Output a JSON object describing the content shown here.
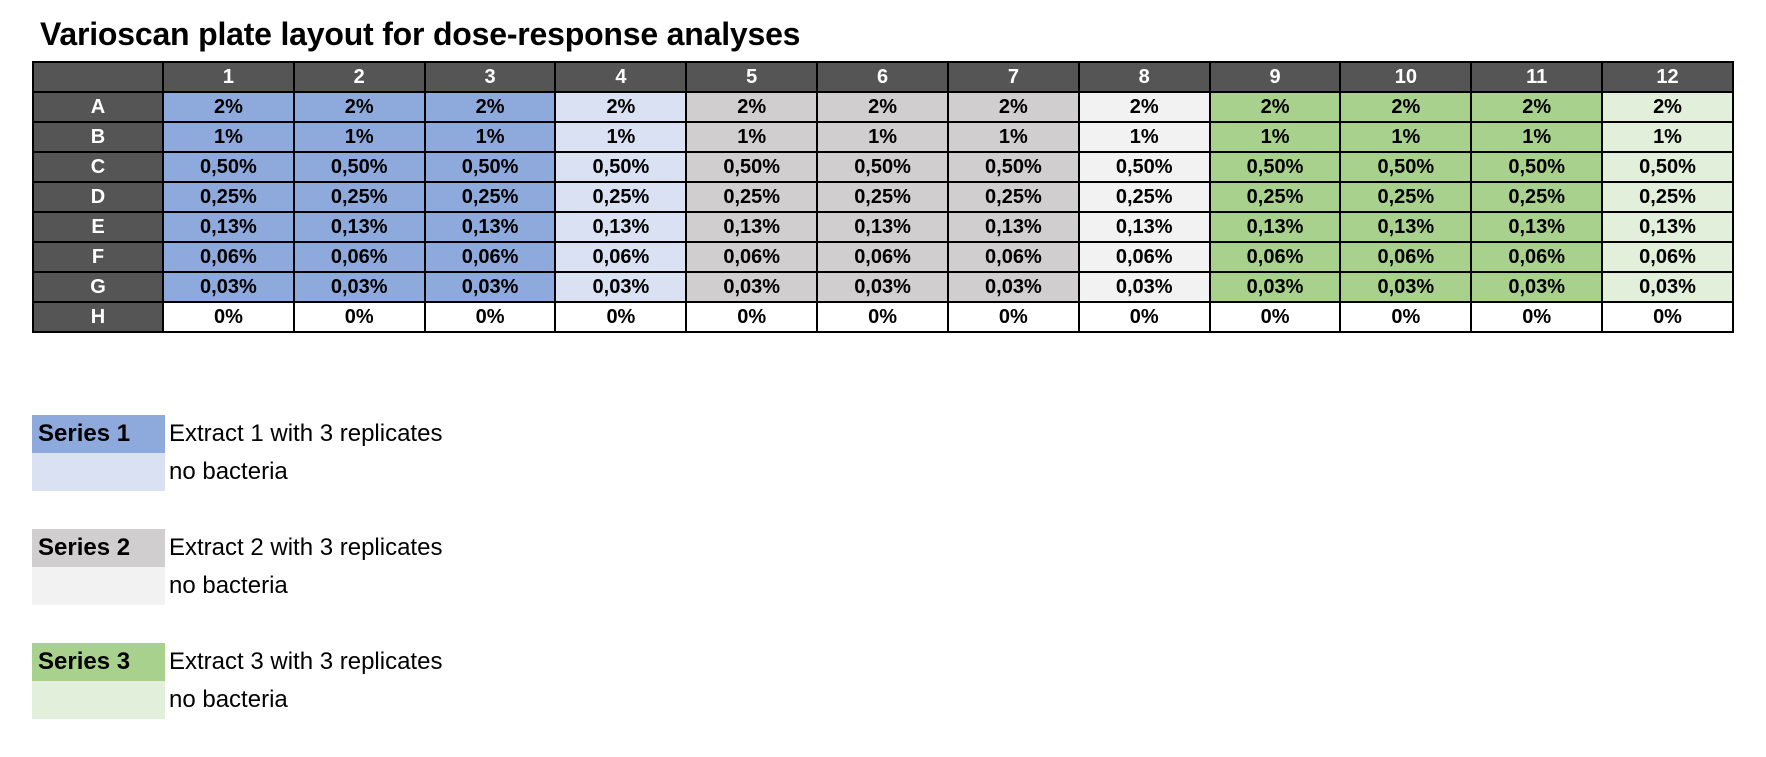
{
  "title": "Varioscan plate layout for dose-response analyses",
  "plate": {
    "columns": [
      "1",
      "2",
      "3",
      "4",
      "5",
      "6",
      "7",
      "8",
      "9",
      "10",
      "11",
      "12"
    ],
    "rows": [
      {
        "label": "A",
        "values": [
          "2%",
          "2%",
          "2%",
          "2%",
          "2%",
          "2%",
          "2%",
          "2%",
          "2%",
          "2%",
          "2%",
          "2%"
        ]
      },
      {
        "label": "B",
        "values": [
          "1%",
          "1%",
          "1%",
          "1%",
          "1%",
          "1%",
          "1%",
          "1%",
          "1%",
          "1%",
          "1%",
          "1%"
        ]
      },
      {
        "label": "C",
        "values": [
          "0,50%",
          "0,50%",
          "0,50%",
          "0,50%",
          "0,50%",
          "0,50%",
          "0,50%",
          "0,50%",
          "0,50%",
          "0,50%",
          "0,50%",
          "0,50%"
        ]
      },
      {
        "label": "D",
        "values": [
          "0,25%",
          "0,25%",
          "0,25%",
          "0,25%",
          "0,25%",
          "0,25%",
          "0,25%",
          "0,25%",
          "0,25%",
          "0,25%",
          "0,25%",
          "0,25%"
        ]
      },
      {
        "label": "E",
        "values": [
          "0,13%",
          "0,13%",
          "0,13%",
          "0,13%",
          "0,13%",
          "0,13%",
          "0,13%",
          "0,13%",
          "0,13%",
          "0,13%",
          "0,13%",
          "0,13%"
        ]
      },
      {
        "label": "F",
        "values": [
          "0,06%",
          "0,06%",
          "0,06%",
          "0,06%",
          "0,06%",
          "0,06%",
          "0,06%",
          "0,06%",
          "0,06%",
          "0,06%",
          "0,06%",
          "0,06%"
        ]
      },
      {
        "label": "G",
        "values": [
          "0,03%",
          "0,03%",
          "0,03%",
          "0,03%",
          "0,03%",
          "0,03%",
          "0,03%",
          "0,03%",
          "0,03%",
          "0,03%",
          "0,03%",
          "0,03%"
        ]
      },
      {
        "label": "H",
        "values": [
          "0%",
          "0%",
          "0%",
          "0%",
          "0%",
          "0%",
          "0%",
          "0%",
          "0%",
          "0%",
          "0%",
          "0%"
        ]
      }
    ]
  },
  "colors": {
    "header_bg": "#555555",
    "series1_main": "#8eaadc",
    "series1_no_bacteria": "#d9e1f2",
    "series2_main": "#d0cece",
    "series2_no_bacteria": "#f2f2f2",
    "series3_main": "#a9d18e",
    "series3_no_bacteria": "#e2efda",
    "control_row": "#ffffff"
  },
  "legend": [
    {
      "series": "Series 1",
      "main": "Extract 1 with 3 replicates",
      "no_bacteria": "no bacteria"
    },
    {
      "series": "Series 2",
      "main": "Extract 2 with 3 replicates",
      "no_bacteria": "no bacteria"
    },
    {
      "series": "Series 3",
      "main": "Extract 3 with 3 replicates",
      "no_bacteria": "no bacteria"
    }
  ]
}
